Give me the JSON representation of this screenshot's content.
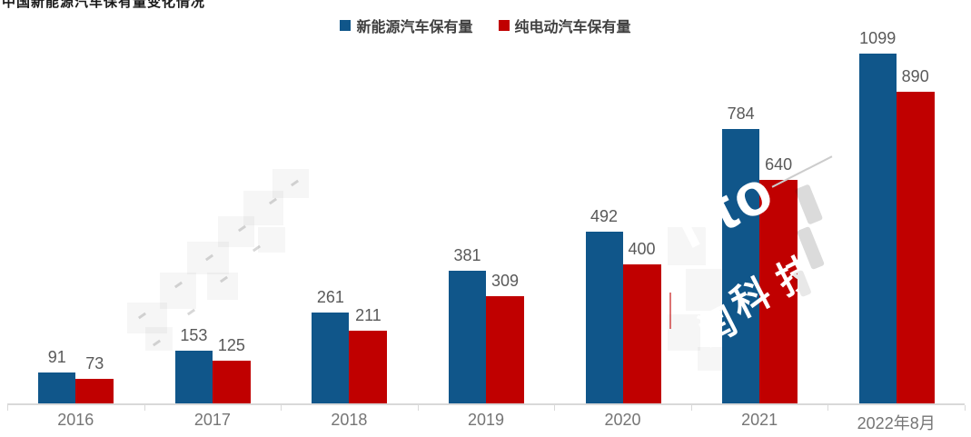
{
  "header": {
    "cropped_text": "中国新能源汽车保有量变化情况"
  },
  "chart_data": {
    "type": "bar",
    "title": "",
    "xlabel": "",
    "ylabel": "",
    "categories": [
      "2016",
      "2017",
      "2018",
      "2019",
      "2020",
      "2021",
      "2022年8月"
    ],
    "series": [
      {
        "name": "新能源汽车保有量",
        "color": "#10568a",
        "values": [
          91,
          153,
          261,
          381,
          492,
          784,
          1099
        ]
      },
      {
        "name": "纯电动汽车保有量",
        "color": "#c00000",
        "values": [
          73,
          125,
          211,
          309,
          400,
          640,
          890
        ]
      }
    ],
    "ylim": [
      0,
      1000
    ],
    "clipped_at_axis_max": true,
    "gridlines": false,
    "data_labels": true,
    "legend_position": "top-center",
    "colors": {
      "series1": "#10568a",
      "series2": "#c00000",
      "value_label": "#595959",
      "axis_label": "#757575",
      "axis_line": "#d9d9d9"
    }
  },
  "watermark": {
    "latin": "nto",
    "cjk": "科技",
    "partial_char": "闰"
  }
}
